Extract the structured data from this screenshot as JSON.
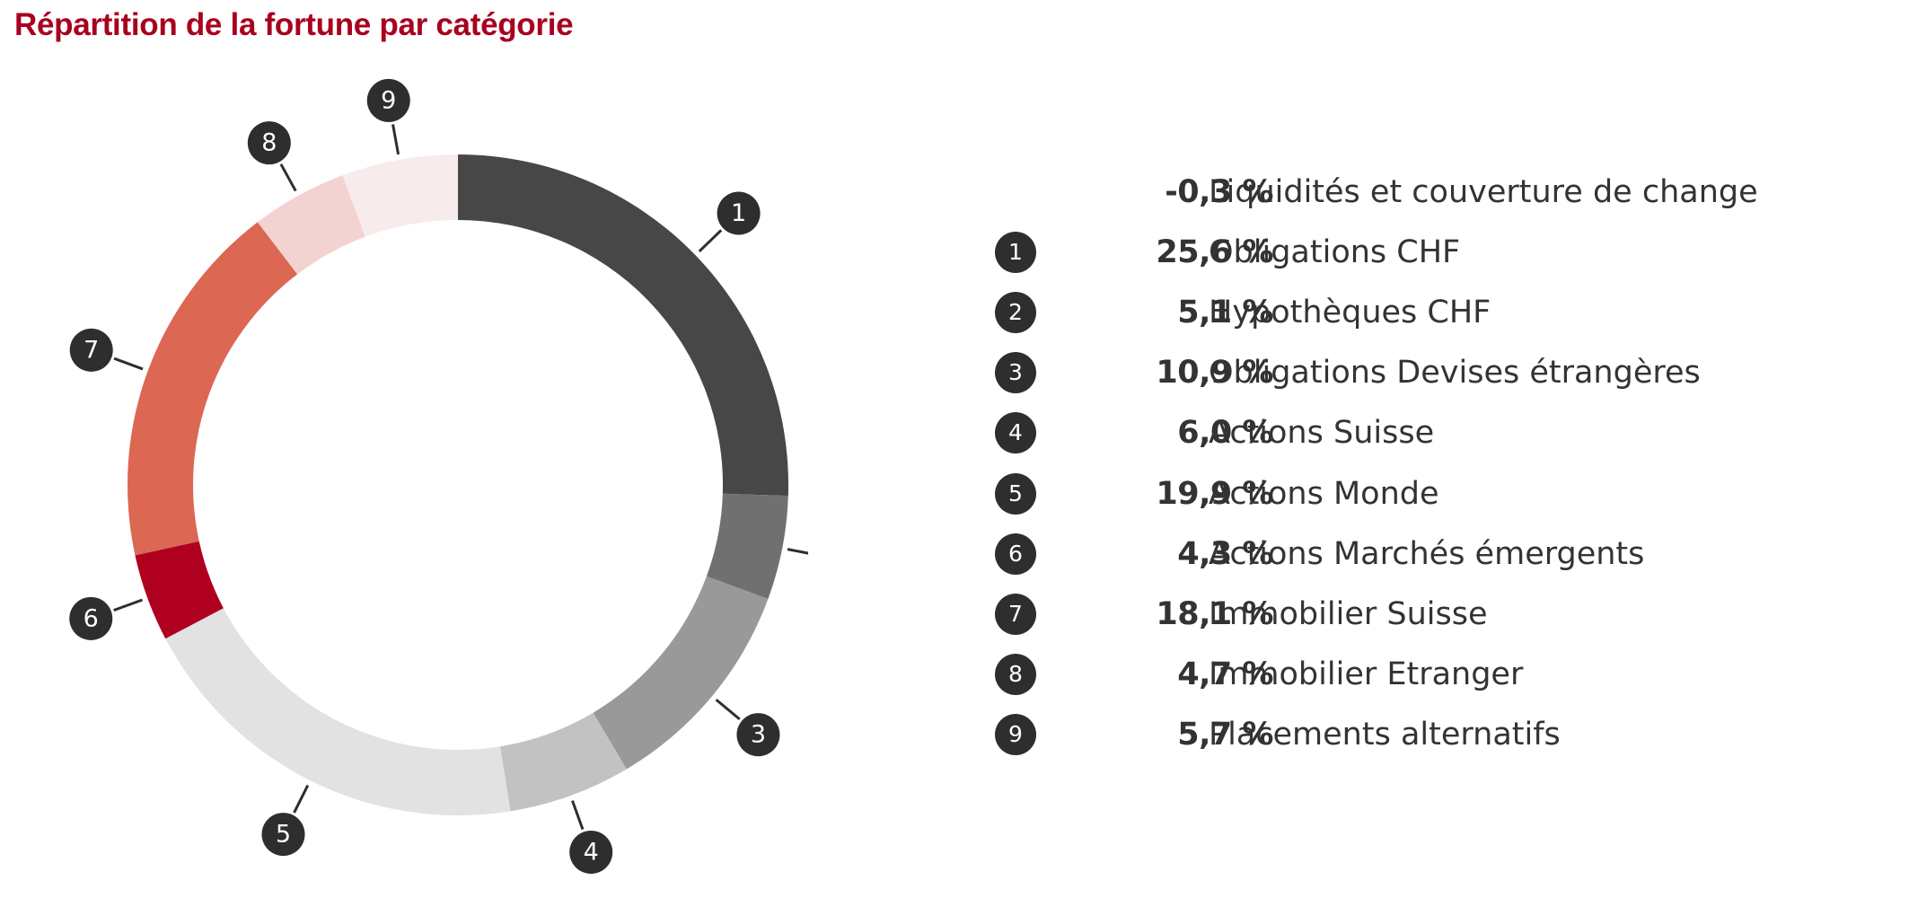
{
  "title": "Répartition de la fortune par catégorie",
  "chart_data": {
    "type": "pie",
    "title": "Répartition de la fortune par catégorie",
    "donut": true,
    "unit": "%",
    "slices": [
      {
        "marker": "",
        "label": "Liquidités et couverture de change",
        "value": -0.3,
        "value_label": "-0,3 %",
        "color": "#ffffff"
      },
      {
        "marker": "1",
        "label": "Obligations CHF",
        "value": 25.6,
        "value_label": "25,6 %",
        "color": "#474747"
      },
      {
        "marker": "2",
        "label": "Hypothèques CHF",
        "value": 5.1,
        "value_label": "5,1 %",
        "color": "#707070"
      },
      {
        "marker": "3",
        "label": "Obligations Devises étrangères",
        "value": 10.9,
        "value_label": "10,9 %",
        "color": "#999999"
      },
      {
        "marker": "4",
        "label": "Actions Suisse",
        "value": 6.0,
        "value_label": "6,0 %",
        "color": "#c2c2c2"
      },
      {
        "marker": "5",
        "label": "Actions Monde",
        "value": 19.9,
        "value_label": "19,9 %",
        "color": "#e2e2e2"
      },
      {
        "marker": "6",
        "label": "Actions Marchés émergents",
        "value": 4.3,
        "value_label": "4,3 %",
        "color": "#b00020"
      },
      {
        "marker": "7",
        "label": "Immobilier Suisse",
        "value": 18.1,
        "value_label": "18,1 %",
        "color": "#dc6753"
      },
      {
        "marker": "8",
        "label": "Immobilier Etranger",
        "value": 4.7,
        "value_label": "4,7 %",
        "color": "#f2d3d2"
      },
      {
        "marker": "9",
        "label": "Placements alternatifs",
        "value": 5.7,
        "value_label": "5,7 %",
        "color": "#f8ebeb"
      }
    ]
  },
  "colors": {
    "title": "#a8001e",
    "text": "#333333",
    "badge": "#2e2e2e"
  }
}
